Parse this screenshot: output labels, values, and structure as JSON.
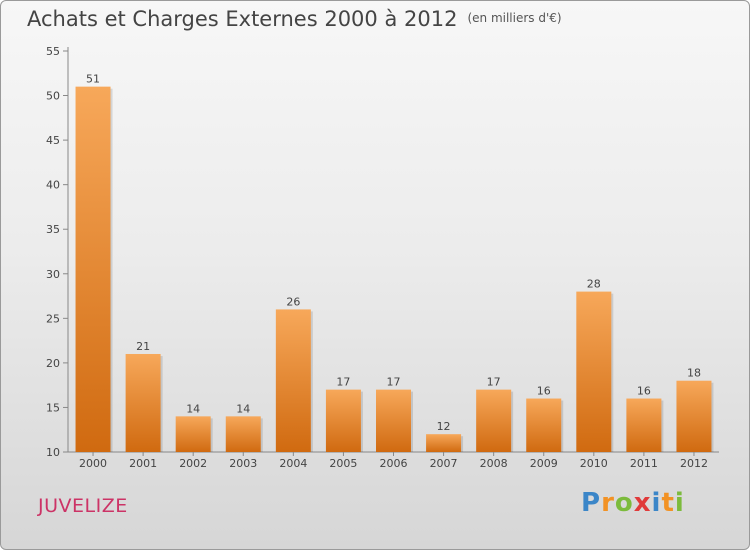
{
  "header": {
    "title": "Achats et Charges Externes 2000 à 2012",
    "subtitle": "(en milliers d'€)"
  },
  "footer": {
    "commune": "JUVELIZE",
    "logo": "Proxiti"
  },
  "colors": {
    "bar_light": "#f7a85a",
    "bar_dark": "#d06a10",
    "axis": "#888888",
    "text": "#444444",
    "accent": "#cc3366"
  },
  "logo_letters": [
    {
      "ch": "P",
      "color": "#3b86c8"
    },
    {
      "ch": "r",
      "color": "#f29224"
    },
    {
      "ch": "o",
      "color": "#7cbb3c"
    },
    {
      "ch": "x",
      "color": "#e03a3a"
    },
    {
      "ch": "i",
      "color": "#3b86c8"
    },
    {
      "ch": "t",
      "color": "#f29224"
    },
    {
      "ch": "i",
      "color": "#7cbb3c"
    }
  ],
  "chart_data": {
    "type": "bar",
    "title": "Achats et Charges Externes 2000 à 2012",
    "subtitle": "(en milliers d'€)",
    "categories": [
      "2000",
      "2001",
      "2002",
      "2003",
      "2004",
      "2005",
      "2006",
      "2007",
      "2008",
      "2009",
      "2010",
      "2011",
      "2012"
    ],
    "values": [
      51,
      21,
      14,
      14,
      26,
      17,
      17,
      12,
      17,
      16,
      28,
      16,
      18
    ],
    "ylim": [
      10,
      55
    ],
    "yticks": [
      10,
      15,
      20,
      25,
      30,
      35,
      40,
      45,
      50,
      55
    ],
    "xlabel": "",
    "ylabel": "",
    "grid": false,
    "data_labels": true
  }
}
